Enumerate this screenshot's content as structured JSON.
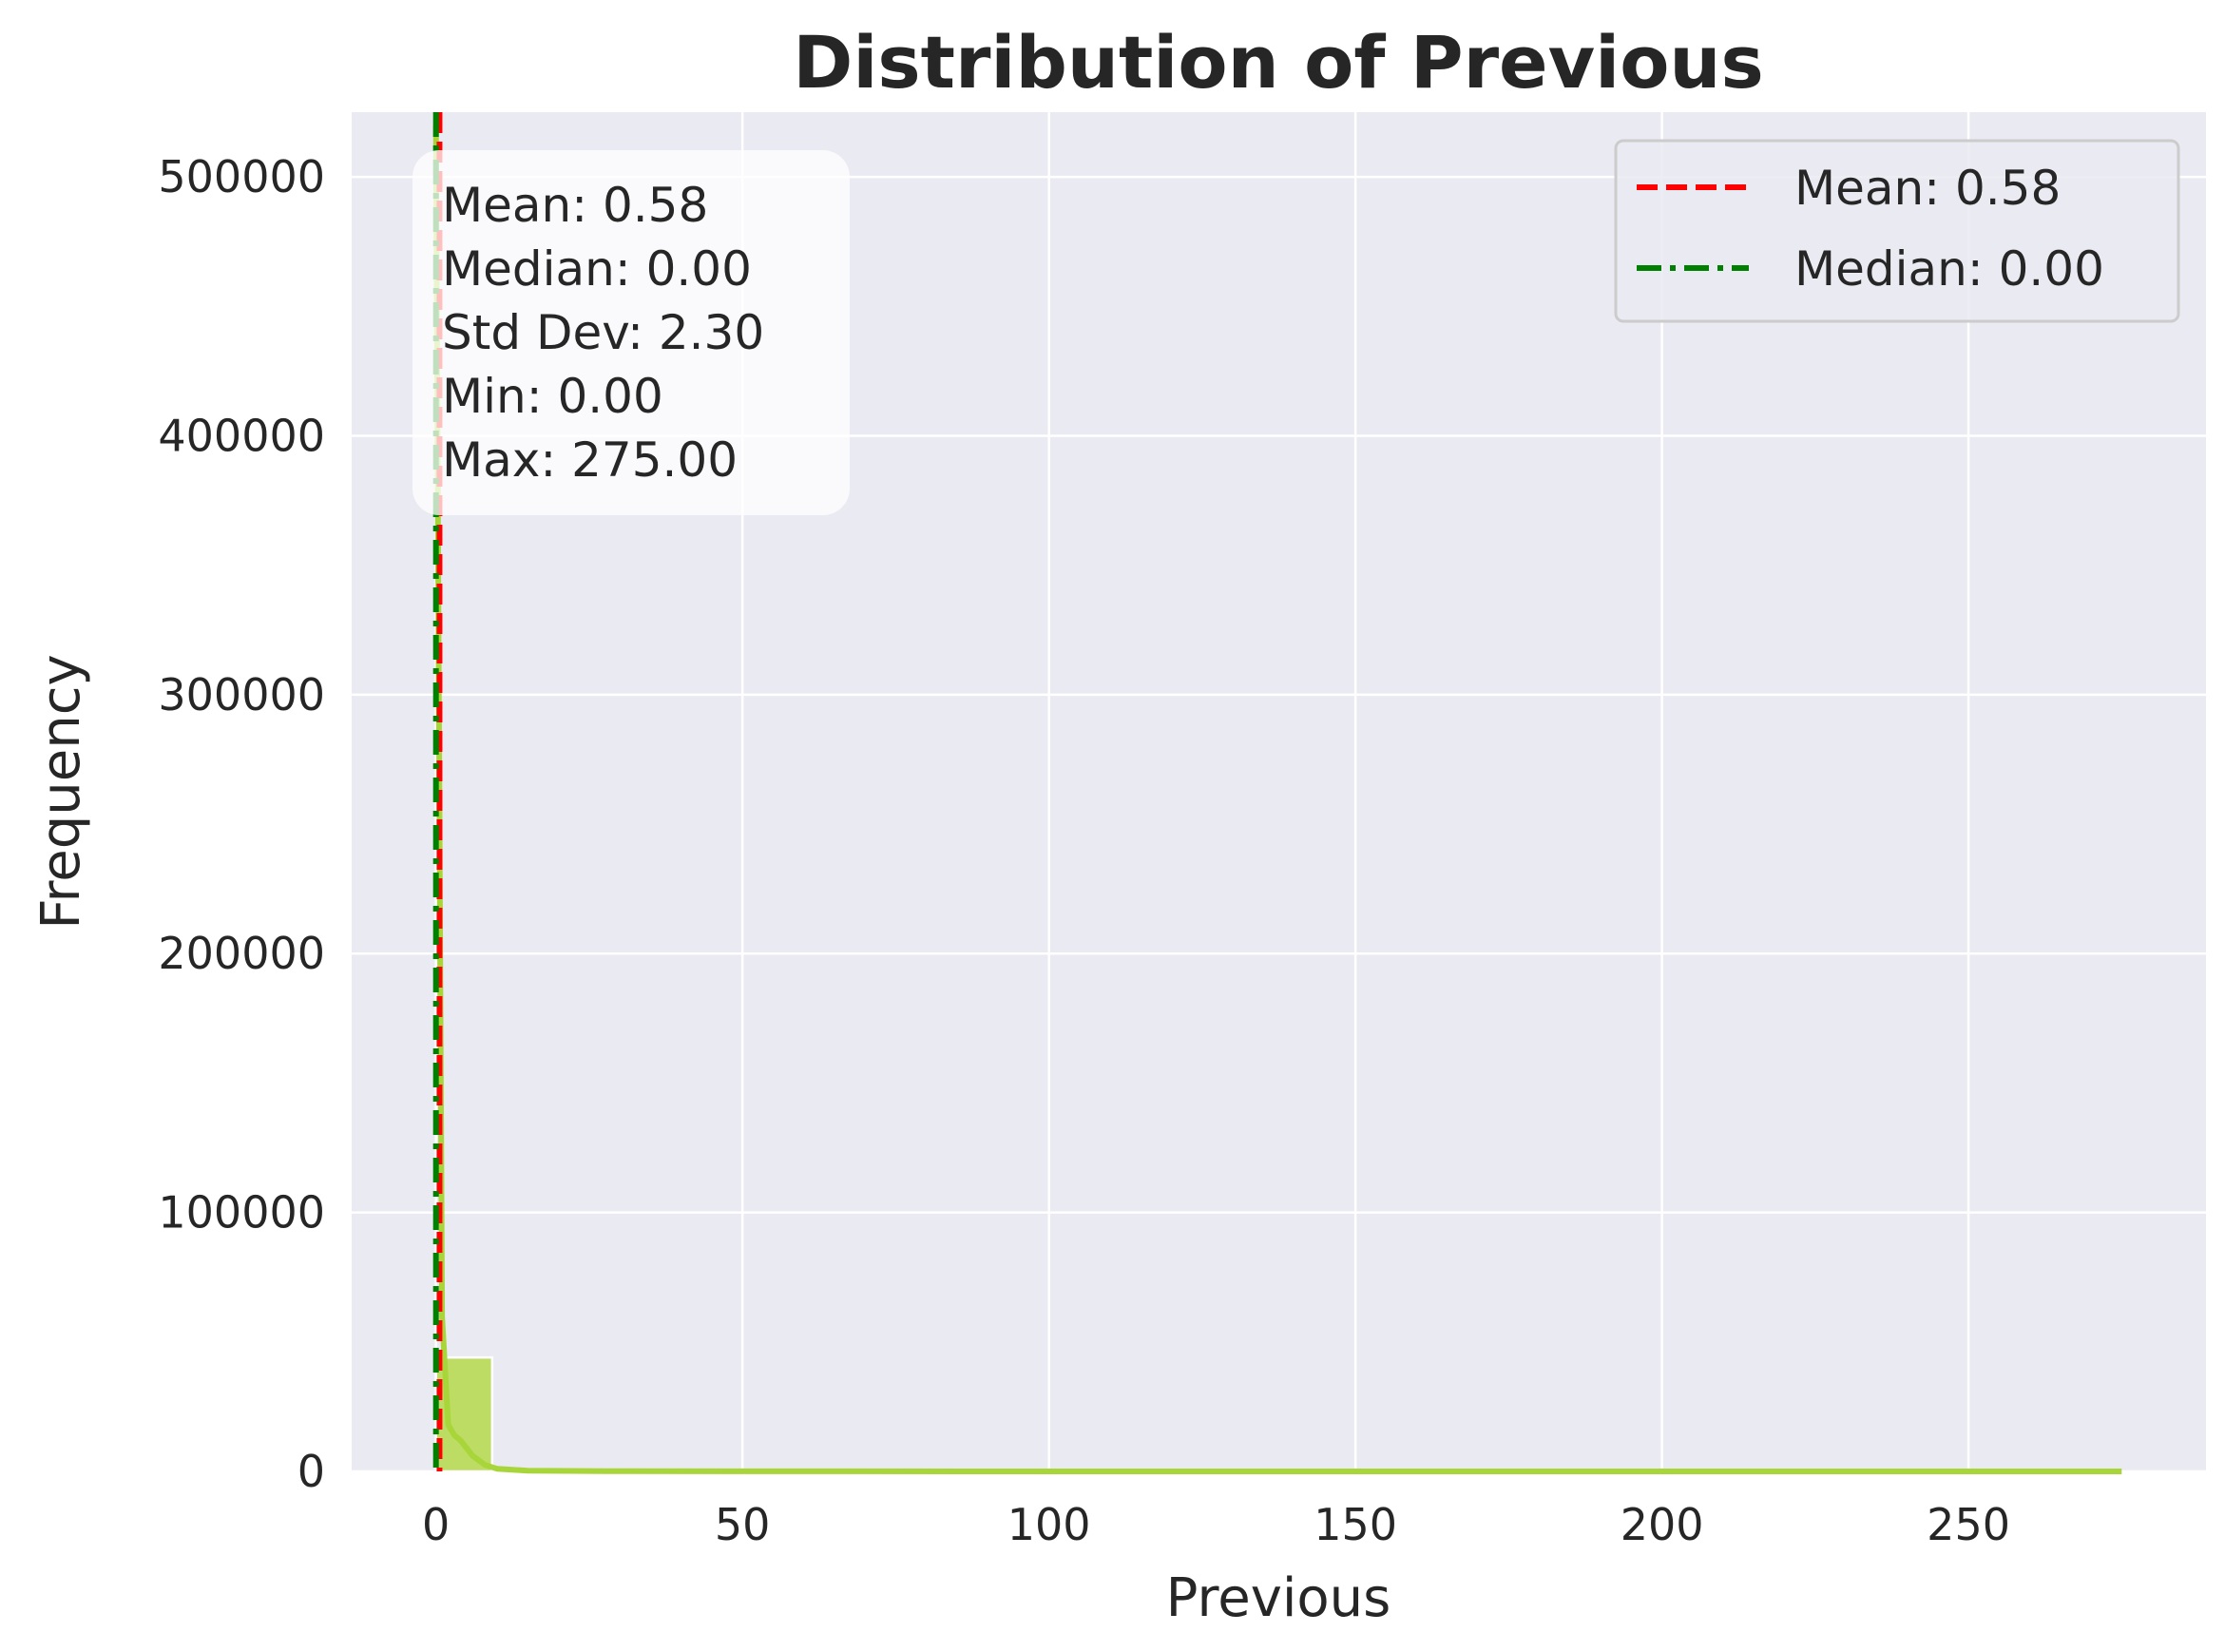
{
  "chart_data": {
    "type": "histogram",
    "title": "Distribution of Previous",
    "xlabel": "Previous",
    "ylabel": "Frequency",
    "xlim": [
      -13.75,
      288.75
    ],
    "ylim": [
      0,
      525000
    ],
    "xticks": [
      0,
      50,
      100,
      150,
      200,
      250
    ],
    "yticks": [
      0,
      100000,
      200000,
      300000,
      400000,
      500000
    ],
    "grid": true,
    "colors": {
      "background": "#eaeaf2",
      "grid": "#ffffff",
      "bars": "#b5d94a",
      "kde": "#a8d63a",
      "mean_line": "#ff0000",
      "median_line": "#008000"
    },
    "bins": [
      {
        "x0": 0.0,
        "x1": 9.17,
        "count": 44000
      },
      {
        "x0": 9.17,
        "x1": 18.33,
        "count": 600
      },
      {
        "x0": 18.33,
        "x1": 27.5,
        "count": 90
      },
      {
        "x0": 27.5,
        "x1": 36.67,
        "count": 30
      },
      {
        "x0": 36.67,
        "x1": 45.83,
        "count": 10
      },
      {
        "x0": 45.83,
        "x1": 55.0,
        "count": 5
      },
      {
        "x0": 55.0,
        "x1": 275.0,
        "count": 2
      }
    ],
    "kde": {
      "x": [
        0,
        1,
        2,
        3,
        4,
        5,
        6,
        8,
        10,
        15,
        30,
        60,
        100,
        150,
        200,
        275
      ],
      "y": [
        520000,
        60000,
        18000,
        14000,
        12000,
        9000,
        6000,
        2500,
        1000,
        300,
        80,
        30,
        10,
        5,
        2,
        0
      ]
    },
    "mean": 0.58,
    "median": 0.0,
    "stats_box": [
      "Mean: 0.58",
      "Median: 0.00",
      "Std Dev: 2.30",
      "Min: 0.00",
      "Max: 275.00"
    ],
    "legend": {
      "placement": "top-right",
      "entries": [
        {
          "label": "Mean: 0.58",
          "color": "#ff0000",
          "style": "dashed"
        },
        {
          "label": "Median: 0.00",
          "color": "#008000",
          "style": "dashdot"
        }
      ]
    }
  }
}
